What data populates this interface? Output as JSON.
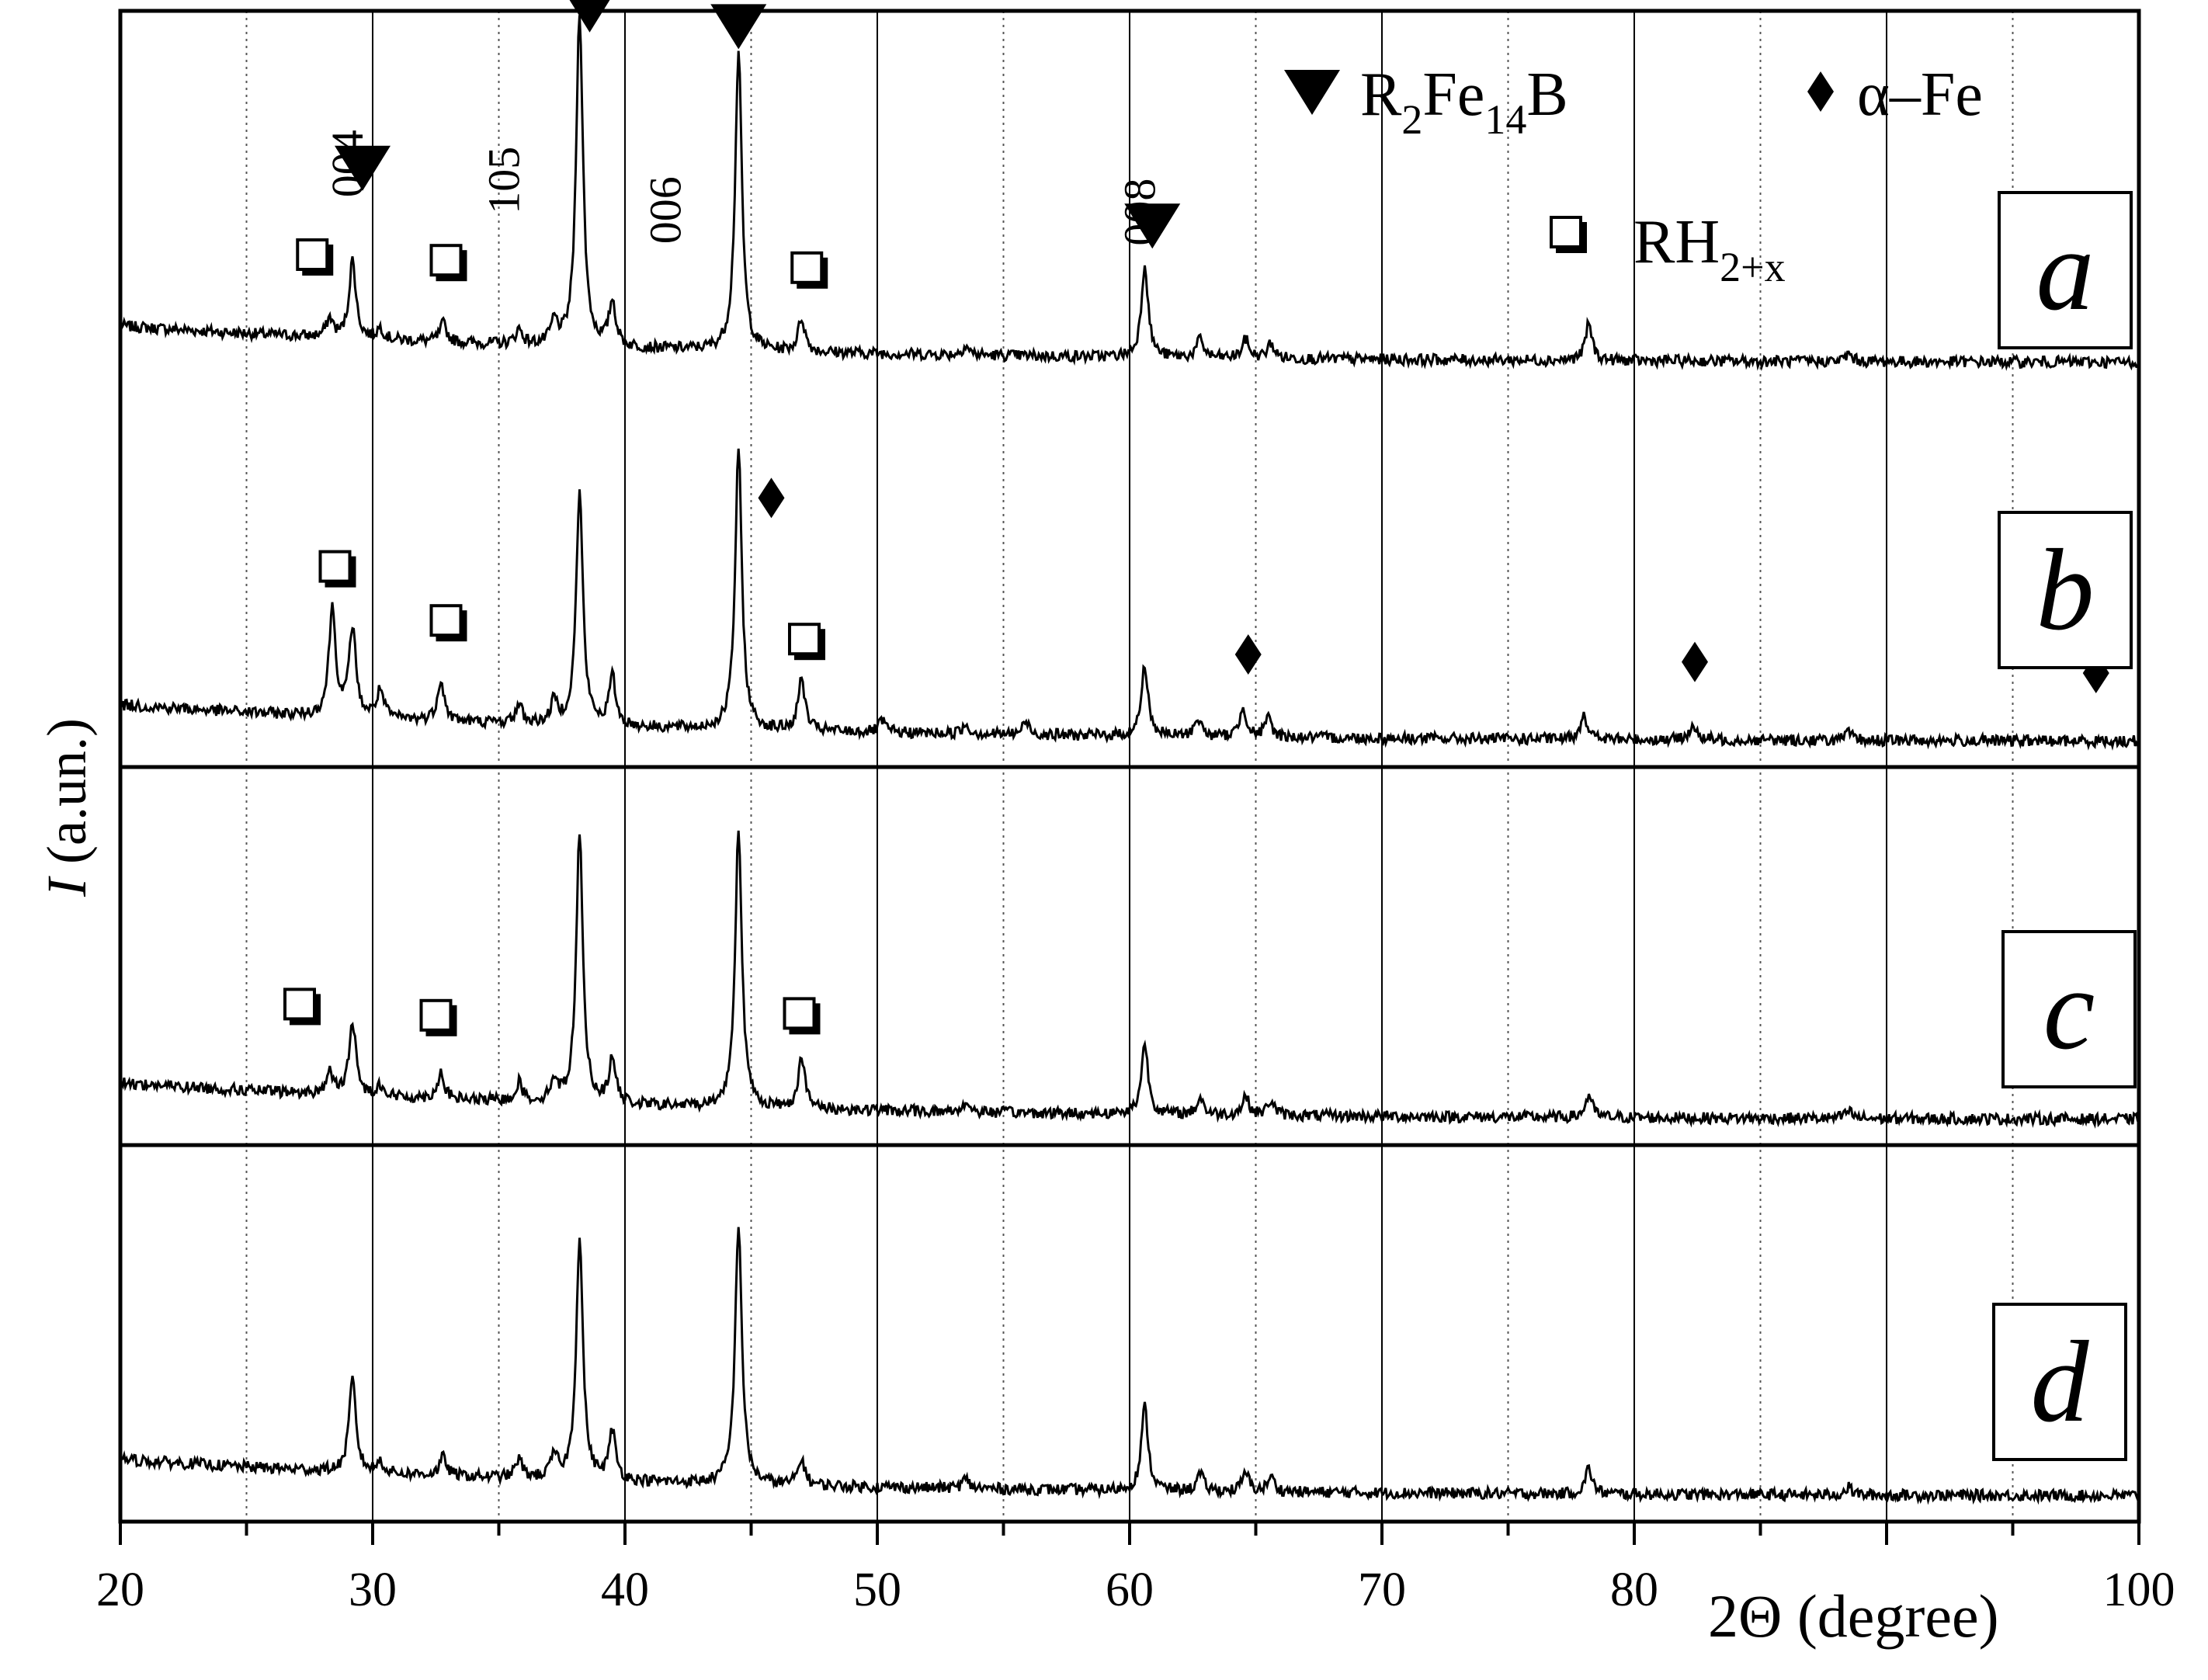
{
  "chart_data": {
    "type": "line",
    "xlabel": "2Θ (degree)",
    "ylabel_italic": "I",
    "ylabel_rest": " (a.un.)",
    "xlim": [
      20,
      100
    ],
    "x_ticks": [
      20,
      30,
      40,
      50,
      60,
      70,
      80,
      100
    ],
    "major_grid": [
      30,
      40,
      50,
      60,
      70,
      80,
      90
    ],
    "minor_grid": [
      25,
      35,
      45,
      55,
      65,
      75,
      85,
      95
    ],
    "grid": true,
    "baseline": 0.2,
    "hkl_labels": [
      {
        "text": "004",
        "x": 29.6,
        "y": 0.92
      },
      {
        "text": "105",
        "x": 35.8,
        "y": 0.83
      },
      {
        "text": "006",
        "x": 42.2,
        "y": 0.67
      },
      {
        "text": "008",
        "x": 61.0,
        "y": 0.66
      }
    ],
    "legend": {
      "placement": "top-right",
      "items": [
        {
          "symbol": "triangle-down",
          "label": "R",
          "sub1": "2",
          "mid": "Fe",
          "sub2": "14",
          "tail": "B"
        },
        {
          "symbol": "diamond",
          "label": "α–Fe"
        },
        {
          "symbol": "square",
          "label": "RH",
          "sub1": "2+x"
        }
      ]
    },
    "panels": [
      {
        "letter": "a",
        "peaks": [
          [
            28.3,
            0.1
          ],
          [
            29.2,
            0.42
          ],
          [
            30.3,
            0.06
          ],
          [
            32.8,
            0.1
          ],
          [
            35.8,
            0.08
          ],
          [
            37.2,
            0.12
          ],
          [
            38.2,
            1.8
          ],
          [
            39.5,
            0.24
          ],
          [
            44.5,
            1.6
          ],
          [
            47.0,
            0.18
          ],
          [
            53.5,
            0.05
          ],
          [
            60.6,
            0.5
          ],
          [
            62.8,
            0.1
          ],
          [
            64.6,
            0.1
          ],
          [
            65.6,
            0.08
          ],
          [
            78.2,
            0.2
          ],
          [
            88.5,
            0.04
          ]
        ],
        "markers": [
          {
            "type": "triangle",
            "x": 29.6,
            "y": 1.08
          },
          {
            "type": "triangle",
            "x": 38.6,
            "y": 1.93
          },
          {
            "type": "triangle",
            "x": 44.5,
            "y": 1.84
          },
          {
            "type": "triangle",
            "x": 60.9,
            "y": 0.77
          },
          {
            "type": "square",
            "x": 27.7,
            "y": 0.6
          },
          {
            "type": "square",
            "x": 33.0,
            "y": 0.57
          },
          {
            "type": "square",
            "x": 47.3,
            "y": 0.53
          }
        ]
      },
      {
        "letter": "b",
        "peaks": [
          [
            28.4,
            0.58
          ],
          [
            29.2,
            0.48
          ],
          [
            30.3,
            0.15
          ],
          [
            32.7,
            0.22
          ],
          [
            35.8,
            0.1
          ],
          [
            37.2,
            0.12
          ],
          [
            38.2,
            1.25
          ],
          [
            39.5,
            0.26
          ],
          [
            44.5,
            1.5
          ],
          [
            47.0,
            0.28
          ],
          [
            50.2,
            0.06
          ],
          [
            53.5,
            0.05
          ],
          [
            55.9,
            0.07
          ],
          [
            60.6,
            0.38
          ],
          [
            62.7,
            0.1
          ],
          [
            64.5,
            0.16
          ],
          [
            65.5,
            0.1
          ],
          [
            78.0,
            0.14
          ],
          [
            82.3,
            0.08
          ],
          [
            88.5,
            0.04
          ]
        ],
        "markers": [
          {
            "type": "diamond",
            "x": 45.8,
            "y": 1.34
          },
          {
            "type": "diamond",
            "x": 64.7,
            "y": 0.5
          },
          {
            "type": "diamond",
            "x": 82.4,
            "y": 0.46
          },
          {
            "type": "diamond",
            "x": 98.3,
            "y": 0.4
          },
          {
            "type": "square",
            "x": 28.6,
            "y": 0.96
          },
          {
            "type": "square",
            "x": 33.0,
            "y": 0.67
          },
          {
            "type": "square",
            "x": 47.2,
            "y": 0.57
          }
        ]
      },
      {
        "letter": "c",
        "peaks": [
          [
            28.3,
            0.12
          ],
          [
            29.2,
            0.4
          ],
          [
            30.3,
            0.06
          ],
          [
            32.7,
            0.14
          ],
          [
            35.8,
            0.1
          ],
          [
            37.2,
            0.12
          ],
          [
            38.2,
            1.45
          ],
          [
            39.5,
            0.24
          ],
          [
            44.5,
            1.5
          ],
          [
            47.0,
            0.28
          ],
          [
            53.5,
            0.05
          ],
          [
            60.6,
            0.38
          ],
          [
            62.8,
            0.09
          ],
          [
            64.6,
            0.1
          ],
          [
            65.6,
            0.08
          ],
          [
            78.2,
            0.12
          ],
          [
            88.5,
            0.04
          ]
        ],
        "markers": [
          {
            "type": "square",
            "x": 27.2,
            "y": 0.64
          },
          {
            "type": "square",
            "x": 32.6,
            "y": 0.58
          },
          {
            "type": "square",
            "x": 47.0,
            "y": 0.59
          }
        ]
      },
      {
        "letter": "d",
        "peaks": [
          [
            29.2,
            0.5
          ],
          [
            30.3,
            0.06
          ],
          [
            32.8,
            0.1
          ],
          [
            35.8,
            0.1
          ],
          [
            37.2,
            0.12
          ],
          [
            38.2,
            1.3
          ],
          [
            39.5,
            0.26
          ],
          [
            44.5,
            1.4
          ],
          [
            47.0,
            0.14
          ],
          [
            53.5,
            0.05
          ],
          [
            60.6,
            0.45
          ],
          [
            62.8,
            0.09
          ],
          [
            64.6,
            0.1
          ],
          [
            65.6,
            0.08
          ],
          [
            78.2,
            0.14
          ],
          [
            88.5,
            0.04
          ]
        ],
        "markers": []
      }
    ]
  }
}
